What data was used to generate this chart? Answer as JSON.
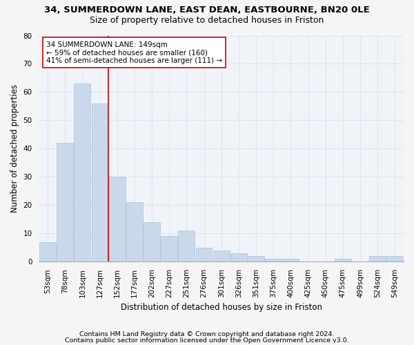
{
  "title1": "34, SUMMERDOWN LANE, EAST DEAN, EASTBOURNE, BN20 0LE",
  "title2": "Size of property relative to detached houses in Friston",
  "xlabel": "Distribution of detached houses by size in Friston",
  "ylabel": "Number of detached properties",
  "footnote1": "Contains HM Land Registry data © Crown copyright and database right 2024.",
  "footnote2": "Contains public sector information licensed under the Open Government Licence v3.0.",
  "bar_labels": [
    "53sqm",
    "78sqm",
    "103sqm",
    "127sqm",
    "152sqm",
    "177sqm",
    "202sqm",
    "227sqm",
    "251sqm",
    "276sqm",
    "301sqm",
    "326sqm",
    "351sqm",
    "375sqm",
    "400sqm",
    "425sqm",
    "450sqm",
    "475sqm",
    "499sqm",
    "524sqm",
    "549sqm"
  ],
  "bar_values": [
    7,
    42,
    63,
    56,
    30,
    21,
    14,
    9,
    11,
    5,
    4,
    3,
    2,
    1,
    1,
    0,
    0,
    1,
    0,
    2,
    2
  ],
  "bar_color": "#c9d9eb",
  "bar_edge_color": "#a8c4da",
  "vline_x_idx": 3.5,
  "vline_color": "#cc0000",
  "annotation_text": "34 SUMMERDOWN LANE: 149sqm\n← 59% of detached houses are smaller (160)\n41% of semi-detached houses are larger (111) →",
  "annotation_box_facecolor": "#ffffff",
  "annotation_box_edgecolor": "#cc0000",
  "ylim": [
    0,
    80
  ],
  "yticks": [
    0,
    10,
    20,
    30,
    40,
    50,
    60,
    70,
    80
  ],
  "bg_color": "#f5f5f5",
  "axes_bg_color": "#f0f4f9",
  "grid_color": "#dde4ee",
  "title1_fontsize": 9.5,
  "title2_fontsize": 9,
  "axis_label_fontsize": 8.5,
  "tick_fontsize": 7.5,
  "footnote_fontsize": 6.8,
  "annotation_fontsize": 7.5
}
